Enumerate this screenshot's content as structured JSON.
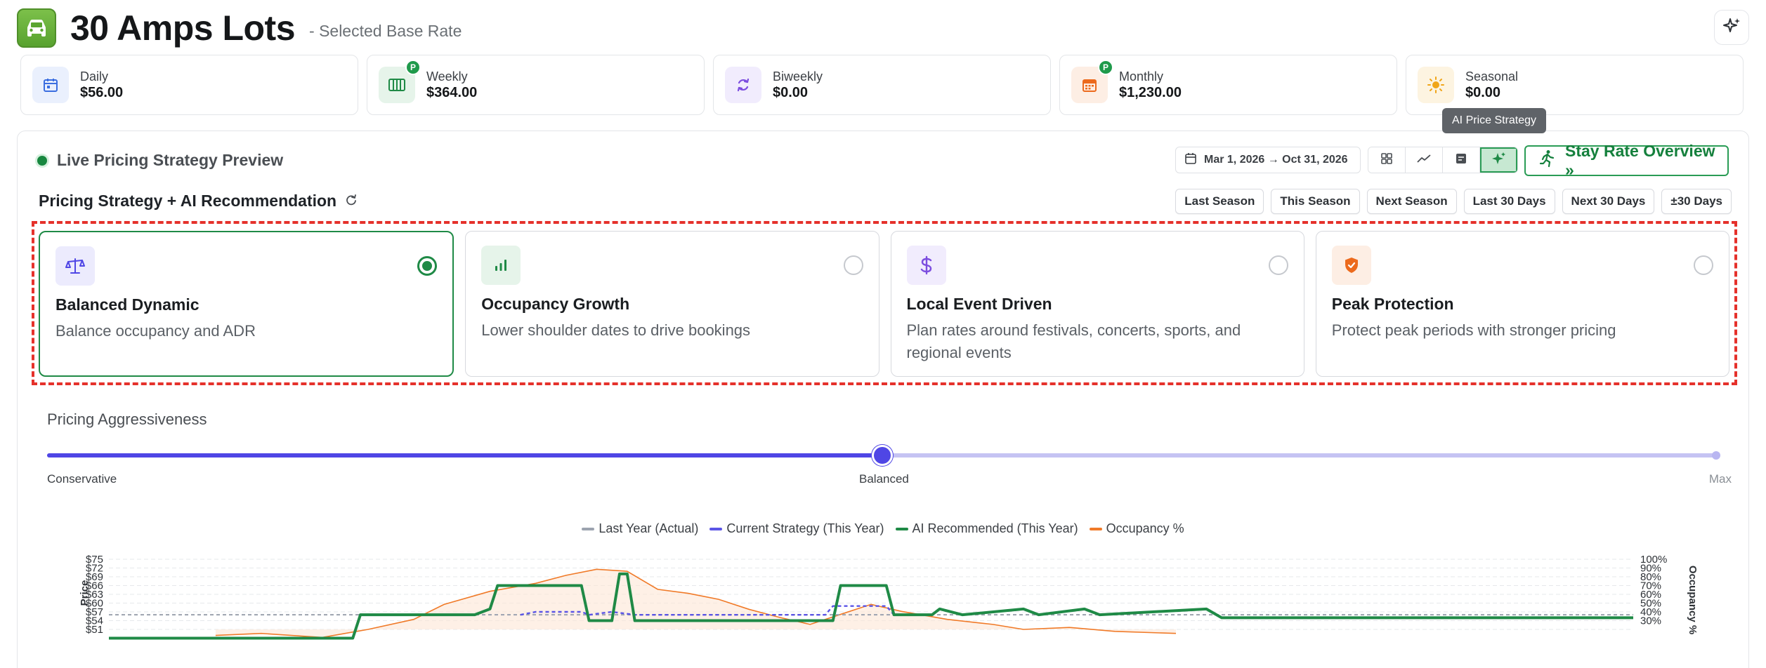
{
  "header": {
    "title": "30 Amps Lots",
    "subtitle": "- Selected Base Rate",
    "app_icon": "car-icon",
    "action_icon": "sparkle-icon"
  },
  "rates": [
    {
      "label": "Daily",
      "value": "$56.00",
      "icon": "calendar-icon",
      "badge": "",
      "bg": "#eaf0fd",
      "color": "#3b6ee0"
    },
    {
      "label": "Weekly",
      "value": "$364.00",
      "icon": "week-grid-icon",
      "badge": "P",
      "bg": "#e6f4ea",
      "color": "#1f8a46"
    },
    {
      "label": "Biweekly",
      "value": "$0.00",
      "icon": "refresh-icon",
      "badge": "",
      "bg": "#f1ecfd",
      "color": "#7c4ddf"
    },
    {
      "label": "Monthly",
      "value": "$1,230.00",
      "icon": "month-calendar-icon",
      "badge": "P",
      "bg": "#fdeee4",
      "color": "#ec6a1d"
    },
    {
      "label": "Seasonal",
      "value": "$0.00",
      "icon": "sun-icon",
      "badge": "",
      "bg": "#fdf4e1",
      "color": "#f0a518"
    }
  ],
  "tooltip": "AI Price Strategy",
  "panel": {
    "live_label": "Live Pricing Strategy Preview",
    "date_range": "Mar 1, 2026 → Oct 31, 2026",
    "stay_button": "Stay Rate Overview »",
    "strategy_title": "Pricing Strategy + AI Recommendation",
    "quick_ranges": [
      "Last Season",
      "This Season",
      "Next Season",
      "Last 30 Days",
      "Next 30 Days",
      "±30 Days"
    ]
  },
  "strategies": [
    {
      "name": "Balanced Dynamic",
      "desc": "Balance occupancy and ADR",
      "icon": "scale-icon",
      "selected": true,
      "bg": "#ecebfd",
      "color": "#4f46e5"
    },
    {
      "name": "Occupancy Growth",
      "desc": "Lower shoulder dates to drive bookings",
      "icon": "bar-chart-icon",
      "selected": false,
      "bg": "#e6f4ea",
      "color": "#1f8a46"
    },
    {
      "name": "Local Event Driven",
      "desc": "Plan rates around festivals, concerts, sports, and regional events",
      "icon": "dollar-icon",
      "selected": false,
      "bg": "#f1ecfd",
      "color": "#7c4ddf"
    },
    {
      "name": "Peak Protection",
      "desc": "Protect peak periods with stronger pricing",
      "icon": "shield-icon",
      "selected": false,
      "bg": "#fdeee4",
      "color": "#ec6a1d"
    }
  ],
  "aggressiveness": {
    "title": "Pricing Aggressiveness",
    "min_label": "Conservative",
    "mid_label": "Balanced",
    "max_label": "Max",
    "value": 0.5
  },
  "chart_data": {
    "type": "line",
    "legend": [
      {
        "name": "Last Year (Actual)",
        "color": "#9ca3af"
      },
      {
        "name": "Current Strategy (This Year)",
        "color": "#5b55e6"
      },
      {
        "name": "AI Recommended (This Year)",
        "color": "#1f8a46"
      },
      {
        "name": "Occupancy %",
        "color": "#f07a28"
      }
    ],
    "ylabel": "Price",
    "y2label": "Occupancy %",
    "y_ticks": [
      "$75",
      "$72",
      "$69",
      "$66",
      "$63",
      "$60",
      "$57",
      "$54",
      "$51"
    ],
    "y2_ticks": [
      "100%",
      "90%",
      "80%",
      "70%",
      "60%",
      "50%",
      "40%",
      "30%"
    ],
    "ylim": [
      51,
      75
    ],
    "y2lim": [
      30,
      100
    ],
    "last_year_level": 56,
    "ai_recommended": [
      {
        "x": 0,
        "y": 48
      },
      {
        "x": 0.16,
        "y": 48
      },
      {
        "x": 0.165,
        "y": 56
      },
      {
        "x": 0.24,
        "y": 56
      },
      {
        "x": 0.25,
        "y": 58
      },
      {
        "x": 0.255,
        "y": 66
      },
      {
        "x": 0.31,
        "y": 66
      },
      {
        "x": 0.315,
        "y": 54
      },
      {
        "x": 0.33,
        "y": 54
      },
      {
        "x": 0.335,
        "y": 70
      },
      {
        "x": 0.34,
        "y": 70
      },
      {
        "x": 0.345,
        "y": 54
      },
      {
        "x": 0.475,
        "y": 54
      },
      {
        "x": 0.48,
        "y": 66
      },
      {
        "x": 0.51,
        "y": 66
      },
      {
        "x": 0.515,
        "y": 56
      },
      {
        "x": 0.54,
        "y": 56
      },
      {
        "x": 0.545,
        "y": 58
      },
      {
        "x": 0.56,
        "y": 56
      },
      {
        "x": 0.6,
        "y": 58
      },
      {
        "x": 0.61,
        "y": 56
      },
      {
        "x": 0.64,
        "y": 58
      },
      {
        "x": 0.65,
        "y": 56
      },
      {
        "x": 0.72,
        "y": 58
      },
      {
        "x": 0.73,
        "y": 55
      },
      {
        "x": 1,
        "y": 55
      }
    ],
    "current_strategy": [
      {
        "x": 0.27,
        "y": 56
      },
      {
        "x": 0.28,
        "y": 57
      },
      {
        "x": 0.31,
        "y": 57
      },
      {
        "x": 0.315,
        "y": 56
      },
      {
        "x": 0.33,
        "y": 57
      },
      {
        "x": 0.345,
        "y": 56
      },
      {
        "x": 0.47,
        "y": 56
      },
      {
        "x": 0.475,
        "y": 59
      },
      {
        "x": 0.51,
        "y": 59
      },
      {
        "x": 0.515,
        "y": 56
      }
    ],
    "occupancy": [
      {
        "x": 0.07,
        "y": 24
      },
      {
        "x": 0.1,
        "y": 26
      },
      {
        "x": 0.14,
        "y": 22
      },
      {
        "x": 0.17,
        "y": 30
      },
      {
        "x": 0.2,
        "y": 40
      },
      {
        "x": 0.22,
        "y": 55
      },
      {
        "x": 0.25,
        "y": 68
      },
      {
        "x": 0.28,
        "y": 76
      },
      {
        "x": 0.3,
        "y": 84
      },
      {
        "x": 0.32,
        "y": 90
      },
      {
        "x": 0.34,
        "y": 88
      },
      {
        "x": 0.36,
        "y": 70
      },
      {
        "x": 0.38,
        "y": 66
      },
      {
        "x": 0.4,
        "y": 60
      },
      {
        "x": 0.42,
        "y": 50
      },
      {
        "x": 0.44,
        "y": 42
      },
      {
        "x": 0.46,
        "y": 35
      },
      {
        "x": 0.48,
        "y": 45
      },
      {
        "x": 0.5,
        "y": 55
      },
      {
        "x": 0.52,
        "y": 48
      },
      {
        "x": 0.55,
        "y": 40
      },
      {
        "x": 0.58,
        "y": 35
      },
      {
        "x": 0.6,
        "y": 30
      },
      {
        "x": 0.63,
        "y": 32
      },
      {
        "x": 0.66,
        "y": 28
      },
      {
        "x": 0.7,
        "y": 26
      }
    ]
  }
}
